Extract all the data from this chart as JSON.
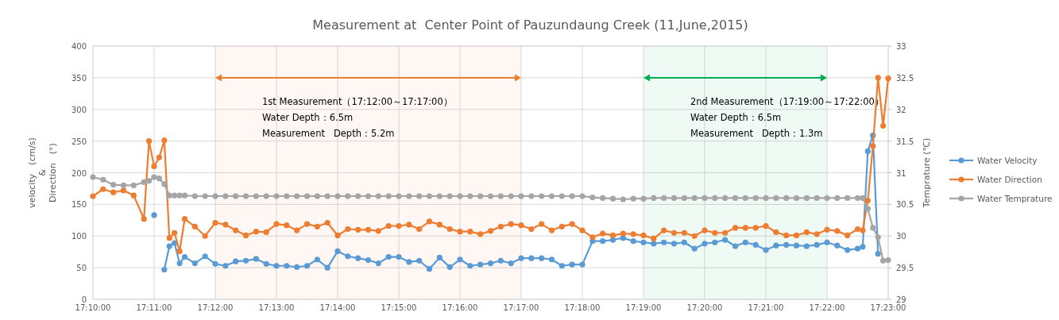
{
  "chart_data": {
    "type": "line",
    "title": "Measurement at  Center Point of Pauzundaung Creek (11,June,2015)",
    "ylabel": "velocity　(cm/s)\n&\nDirection　(°)",
    "y2label": "Temprature (℃)",
    "x": [
      17.16667,
      17.16944,
      17.17222,
      17.175,
      17.17778,
      17.18056,
      17.18194,
      17.18333,
      17.18472,
      17.18611,
      17.1875,
      17.18889,
      17.19028,
      17.19167,
      17.19444,
      17.19722,
      17.2,
      17.20278,
      17.20556,
      17.20833,
      17.21111,
      17.21389,
      17.21667,
      17.21944,
      17.22222,
      17.225,
      17.22778,
      17.23056,
      17.23333,
      17.23611,
      17.23889,
      17.24167,
      17.24444,
      17.24722,
      17.25,
      17.25278,
      17.25556,
      17.25833,
      17.26111,
      17.26389,
      17.26667,
      17.26944,
      17.27222,
      17.275,
      17.27778,
      17.28056,
      17.28333,
      17.28611,
      17.28889,
      17.29167,
      17.29444,
      17.29722,
      17.3,
      17.30278,
      17.30556,
      17.30833,
      17.31111,
      17.31389,
      17.31667,
      17.31944,
      17.32222,
      17.325,
      17.32778,
      17.33056,
      17.33333,
      17.33611,
      17.33889,
      17.34167,
      17.34444,
      17.34722,
      17.35,
      17.35278,
      17.35556,
      17.35833,
      17.36111,
      17.36389,
      17.36667,
      17.36944,
      17.37222,
      17.375,
      17.37639,
      17.37778,
      17.37917,
      17.38056,
      17.38194,
      17.38333
    ],
    "series": [
      {
        "name": "Water Velocity",
        "color": "#5b9bd5",
        "values": [
          null,
          null,
          null,
          null,
          null,
          null,
          null,
          133,
          null,
          47,
          84,
          89,
          57,
          67,
          57,
          68,
          56,
          53,
          60,
          61,
          64,
          56,
          53,
          53,
          51,
          53,
          63,
          50,
          76,
          68,
          65,
          62,
          57,
          67,
          67,
          59,
          61,
          48,
          66,
          51,
          63,
          53,
          55,
          57,
          61,
          57,
          65,
          65,
          65,
          63,
          53,
          55,
          55,
          92,
          92,
          94,
          97,
          92,
          90,
          88,
          90,
          88,
          90,
          80,
          88,
          90,
          94,
          84,
          90,
          86,
          78,
          85,
          86,
          85,
          84,
          86,
          90,
          85,
          78,
          80,
          83,
          234,
          259,
          72,
          null,
          null
        ]
      },
      {
        "name": "Water Direction",
        "color": "#ed7d31",
        "values": [
          163,
          174,
          169,
          172,
          164,
          127,
          250,
          210,
          224,
          251,
          97,
          105,
          76,
          127,
          115,
          100,
          121,
          118,
          109,
          101,
          107,
          106,
          119,
          117,
          109,
          119,
          115,
          121,
          101,
          111,
          110,
          110,
          108,
          116,
          116,
          118,
          111,
          123,
          118,
          111,
          107,
          107,
          103,
          108,
          115,
          119,
          117,
          111,
          119,
          109,
          115,
          119,
          109,
          98,
          104,
          101,
          104,
          103,
          101,
          96,
          109,
          105,
          105,
          100,
          109,
          105,
          105,
          113,
          113,
          113,
          116,
          106,
          101,
          101,
          106,
          103,
          110,
          108,
          101,
          111,
          109,
          156,
          242,
          350,
          274,
          349
        ]
      },
      {
        "name": "Water Temprature",
        "color": "#a5a5a5",
        "axis": "y2",
        "values": [
          30.93,
          30.89,
          30.81,
          30.8,
          30.8,
          30.85,
          30.87,
          30.93,
          30.91,
          30.82,
          30.64,
          30.64,
          30.64,
          30.64,
          30.63,
          30.63,
          30.63,
          30.63,
          30.63,
          30.63,
          30.63,
          30.63,
          30.63,
          30.63,
          30.63,
          30.63,
          30.63,
          30.63,
          30.63,
          30.63,
          30.63,
          30.63,
          30.63,
          30.63,
          30.63,
          30.63,
          30.63,
          30.63,
          30.63,
          30.63,
          30.63,
          30.63,
          30.63,
          30.63,
          30.63,
          30.63,
          30.63,
          30.63,
          30.63,
          30.63,
          30.63,
          30.63,
          30.63,
          30.61,
          30.6,
          30.59,
          30.58,
          30.59,
          30.59,
          30.6,
          30.6,
          30.6,
          30.6,
          30.6,
          30.6,
          30.6,
          30.6,
          30.6,
          30.6,
          30.6,
          30.6,
          30.6,
          30.6,
          30.6,
          30.6,
          30.6,
          30.6,
          30.6,
          30.6,
          30.6,
          30.6,
          30.43,
          30.13,
          29.98,
          29.61,
          29.62
        ]
      }
    ],
    "xlim": [
      17.16667,
      17.38333
    ],
    "xticks": [
      {
        "value": 17.16667,
        "label": "17:10:00"
      },
      {
        "value": 17.18333,
        "label": "17:11:00"
      },
      {
        "value": 17.2,
        "label": "17:12:00"
      },
      {
        "value": 17.21667,
        "label": "17:13:00"
      },
      {
        "value": 17.23333,
        "label": "17:14:00"
      },
      {
        "value": 17.25,
        "label": "17:15:00"
      },
      {
        "value": 17.26667,
        "label": "17:16:00"
      },
      {
        "value": 17.28333,
        "label": "17:17:00"
      },
      {
        "value": 17.3,
        "label": "17:18:00"
      },
      {
        "value": 17.31667,
        "label": "17:19:00"
      },
      {
        "value": 17.33333,
        "label": "17:20:00"
      },
      {
        "value": 17.35,
        "label": "17:21:00"
      },
      {
        "value": 17.36667,
        "label": "17:22:00"
      },
      {
        "value": 17.38333,
        "label": "17:23:00"
      }
    ],
    "ylim": [
      0,
      400
    ],
    "yticks": [
      0,
      50,
      100,
      150,
      200,
      250,
      300,
      350,
      400
    ],
    "y2lim": [
      29,
      33
    ],
    "y2ticks": [
      29,
      29.5,
      30,
      30.5,
      31,
      31.5,
      32,
      32.5,
      33
    ],
    "bands": [
      {
        "axis": "x",
        "from": 17.2,
        "to": 17.28333,
        "color": "#ed7d31",
        "label": "1st Measurement（17:12:00～17:17:00）\nWater Depth：6.5m\nMeasurement   Depth：5.2m"
      },
      {
        "axis": "x",
        "from": 17.31667,
        "to": 17.36667,
        "color": "#00b050",
        "label": "2nd Measurement（17:19:00～17:22:00）\nWater Depth：6.5m\nMeasurement   Depth：1.3m"
      }
    ],
    "grid": true,
    "legend": "right",
    "marker": "circle",
    "line_style": "solid"
  }
}
